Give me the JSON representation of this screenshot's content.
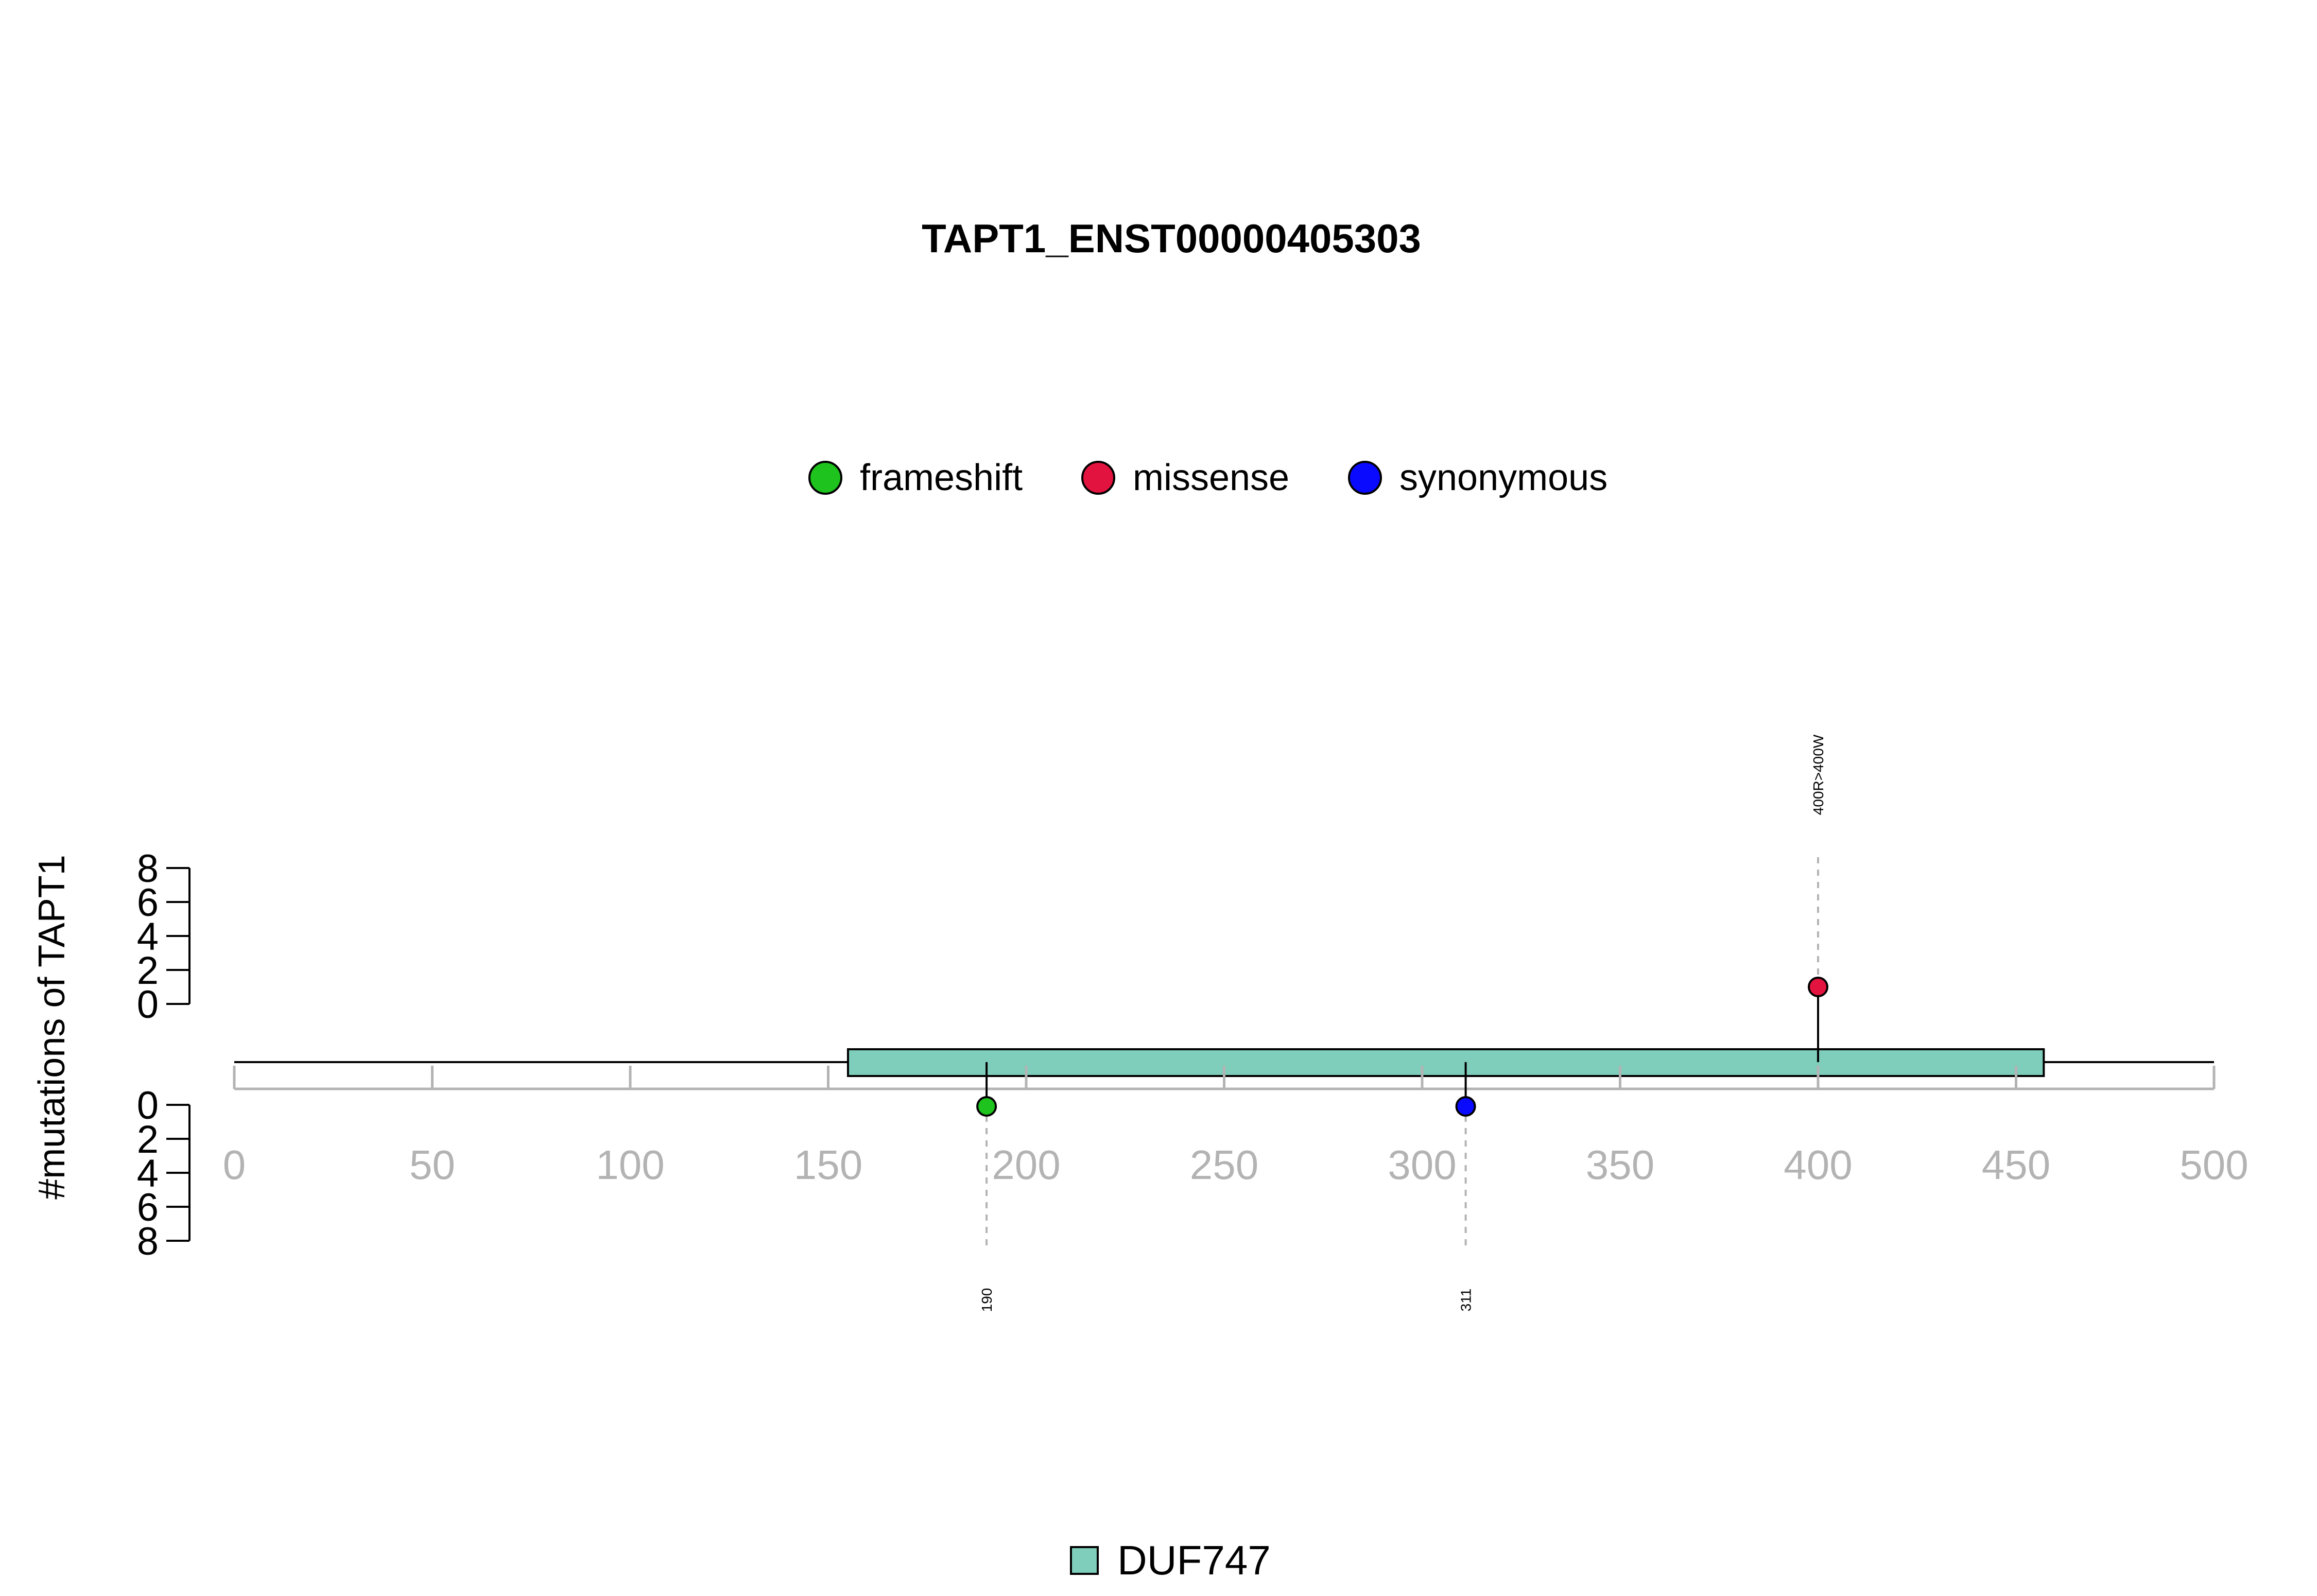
{
  "chart_data": {
    "type": "lollipop",
    "title": "TAPT1_ENST00000405303",
    "ylabel": "#mutations of TAPT1",
    "x_ticks": [
      0,
      50,
      100,
      150,
      200,
      250,
      300,
      350,
      400,
      450,
      500
    ],
    "xlim": [
      0,
      500
    ],
    "y_ticks_top": [
      0,
      2,
      4,
      6,
      8
    ],
    "y_ticks_bottom": [
      0,
      2,
      4,
      6,
      8
    ],
    "ylim": [
      0,
      8
    ],
    "legend_position": "top-center",
    "mutation_legend": [
      {
        "name": "frameshift",
        "color": "#1ec31e"
      },
      {
        "name": "missense",
        "color": "#e2133f"
      },
      {
        "name": "synonymous",
        "color": "#0a0aff"
      }
    ],
    "domains": [
      {
        "name": "DUF747",
        "start": 155,
        "end": 457,
        "color": "#7fcdbb"
      }
    ],
    "domain_legend": [
      {
        "name": "DUF747",
        "color": "#7fcdbb"
      }
    ],
    "mutations": [
      {
        "position": 190,
        "count": 1,
        "type": "frameshift",
        "side": "bottom",
        "label": "190",
        "color": "#1ec31e"
      },
      {
        "position": 311,
        "count": 1,
        "type": "synonymous",
        "side": "bottom",
        "label": "311",
        "color": "#0a0aff"
      },
      {
        "position": 400,
        "count": 1,
        "type": "missense",
        "side": "top",
        "label": "400R>400W",
        "color": "#e2133f"
      }
    ]
  }
}
